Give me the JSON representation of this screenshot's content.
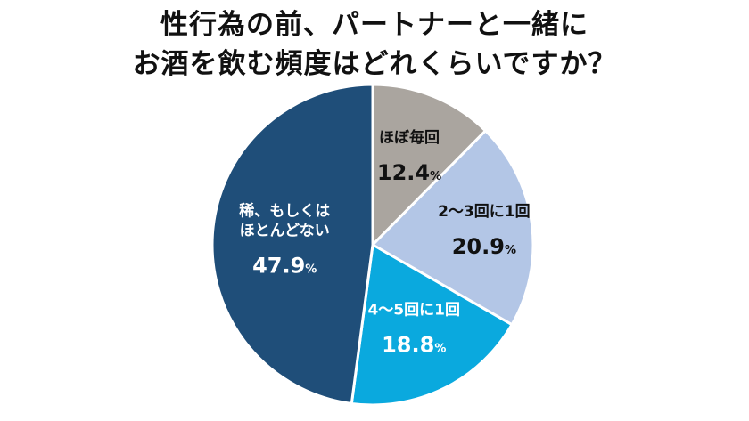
{
  "chart_data": {
    "type": "pie",
    "title_lines": [
      "性行為の前、パートナーと一緒に",
      "お酒を飲む頻度はどれくらいですか？"
    ],
    "slices": [
      {
        "label": "ほぼ毎回",
        "value": 12.4,
        "display": "12.4",
        "unit": "%",
        "color": "#aaa59f",
        "text_color": "#111111"
      },
      {
        "label": "2〜3回に1回",
        "value": 20.9,
        "display": "20.9",
        "unit": "%",
        "color": "#b3c6e6",
        "text_color": "#111111"
      },
      {
        "label": "4〜5回に1回",
        "value": 18.8,
        "display": "18.8",
        "unit": "%",
        "color": "#0aa9de",
        "text_color": "#ffffff"
      },
      {
        "label": "稀、もしくは\nほとんどない",
        "value": 47.9,
        "display": "47.9",
        "unit": "%",
        "color": "#1f4e79",
        "text_color": "#ffffff"
      }
    ],
    "start_angle_deg": 0,
    "direction": "clockwise",
    "legend": "none"
  }
}
